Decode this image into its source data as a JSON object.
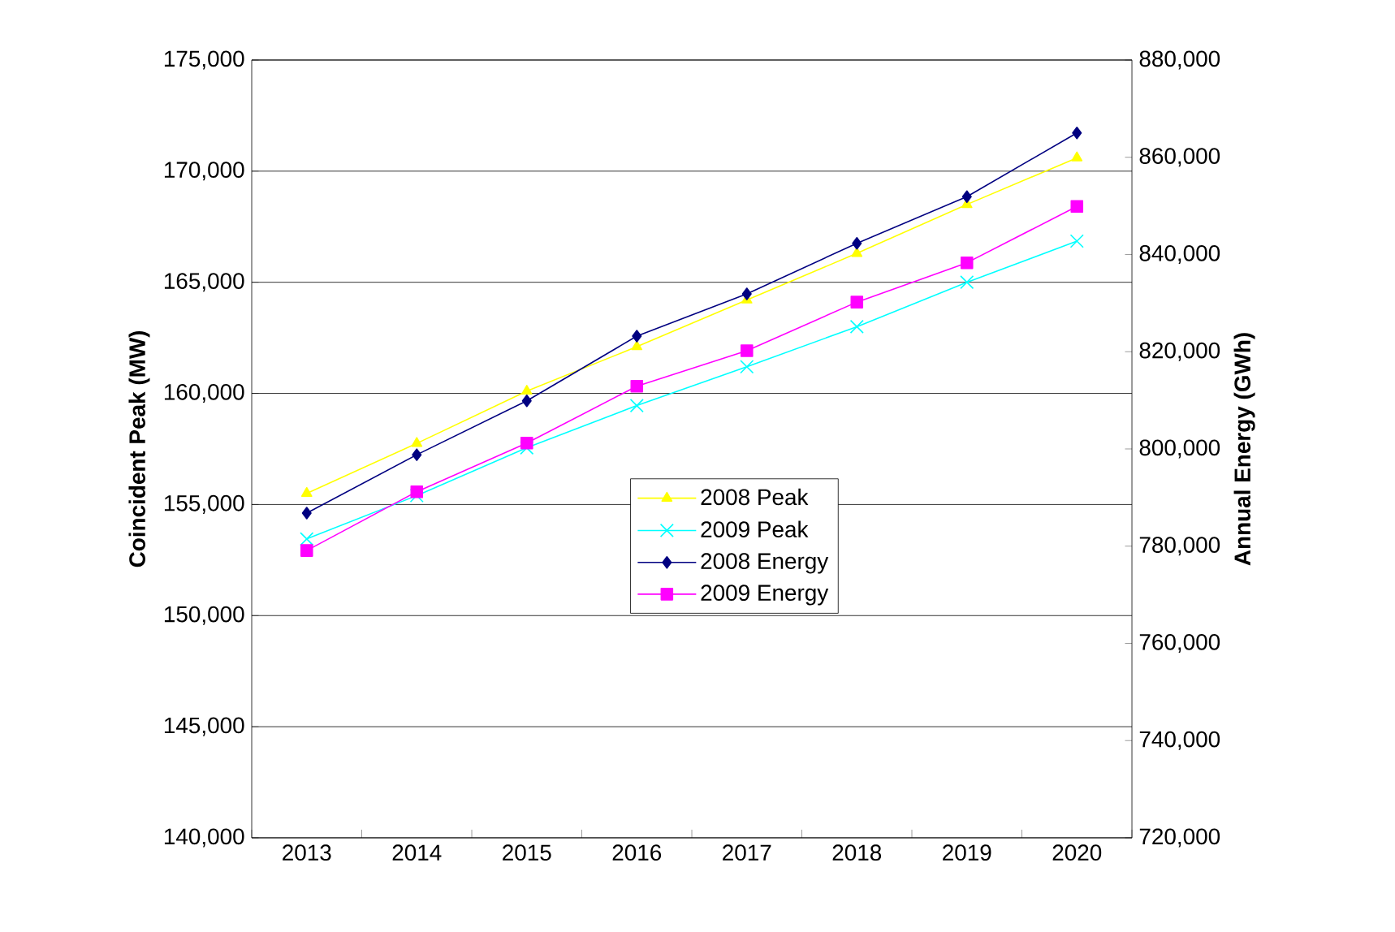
{
  "chart_data": {
    "type": "line",
    "xlabel": null,
    "ylabel": "Coincident Peak (MW)",
    "y2label": "Annual Energy (GWh)",
    "categories": [
      "2013",
      "2014",
      "2015",
      "2016",
      "2017",
      "2018",
      "2019",
      "2020"
    ],
    "series": [
      {
        "name": "2008 Peak",
        "color": "#ffff00",
        "marker": "triangle",
        "values": [
          155500,
          157750,
          160100,
          162100,
          164200,
          166300,
          168500,
          170600
        ]
      },
      {
        "name": "2009 Peak",
        "color": "#00ffff",
        "marker": "cross",
        "values": [
          153450,
          155400,
          157550,
          159450,
          161200,
          163000,
          165000,
          166850
        ]
      },
      {
        "name": "2008 Energy",
        "color": "#000080",
        "marker": "diamond",
        "axis": "y2",
        "values": [
          786800,
          798800,
          809900,
          823200,
          831900,
          842300,
          851900,
          865000
        ]
      },
      {
        "name": "2009 Energy",
        "color": "#ff00ff",
        "marker": "square",
        "axis": "y2",
        "values": [
          779100,
          791200,
          801200,
          812900,
          820200,
          830200,
          838300,
          849900
        ]
      }
    ],
    "ylim": [
      140000,
      175000
    ],
    "yticks": [
      {
        "value": 140000,
        "label": "140,000"
      },
      {
        "value": 145000,
        "label": "145,000"
      },
      {
        "value": 150000,
        "label": "150,000"
      },
      {
        "value": 155000,
        "label": "155,000"
      },
      {
        "value": 160000,
        "label": "160,000"
      },
      {
        "value": 165000,
        "label": "165,000"
      },
      {
        "value": 170000,
        "label": "170,000"
      },
      {
        "value": 175000,
        "label": "175,000"
      }
    ],
    "y2lim": [
      720000,
      880000
    ],
    "y2ticks": [
      {
        "value": 720000,
        "label": "720,000"
      },
      {
        "value": 740000,
        "label": "740,000"
      },
      {
        "value": 760000,
        "label": "760,000"
      },
      {
        "value": 780000,
        "label": "780,000"
      },
      {
        "value": 800000,
        "label": "800,000"
      },
      {
        "value": 820000,
        "label": "820,000"
      },
      {
        "value": 840000,
        "label": "840,000"
      },
      {
        "value": 860000,
        "label": "860,000"
      },
      {
        "value": 880000,
        "label": "880,000"
      }
    ],
    "grid": "y",
    "legend": "center",
    "line_style": "solid"
  }
}
